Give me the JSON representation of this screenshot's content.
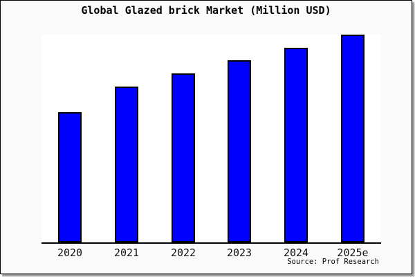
{
  "window": {
    "background_color": "#fafafa",
    "plot_background_color": "#ffffff",
    "frame_border_color": "#000000",
    "shadow_color": "#909090",
    "axis_line_color": "#000000"
  },
  "header": {
    "title": "Global Glazed brick Market (Million USD)"
  },
  "footer": {
    "source": "Source: Prof Research"
  },
  "chart_data": {
    "type": "bar",
    "title": "Global Glazed brick Market (Million USD)",
    "unit": "Million USD",
    "categories": [
      "2020",
      "2021",
      "2022",
      "2023",
      "2024",
      "2025e"
    ],
    "series": [
      {
        "name": "Global Glazed brick Market",
        "values_pct_of_max": [
          62.8,
          75.0,
          81.5,
          87.7,
          93.7,
          100.0
        ]
      }
    ],
    "value_note": "y-axis is unlabeled (no ticks or gridlines); values are bar heights as percent of the tallest bar (2025e = 100)",
    "xlabel": "",
    "ylabel": "",
    "ylim_pct": [
      0,
      100
    ],
    "gridlines": false,
    "legend": false,
    "y_axis_visible": false,
    "x_axis_visible": true,
    "bar_color": "#0000ff",
    "bar_border_color": "#000000",
    "source": "Source: Prof Research"
  }
}
